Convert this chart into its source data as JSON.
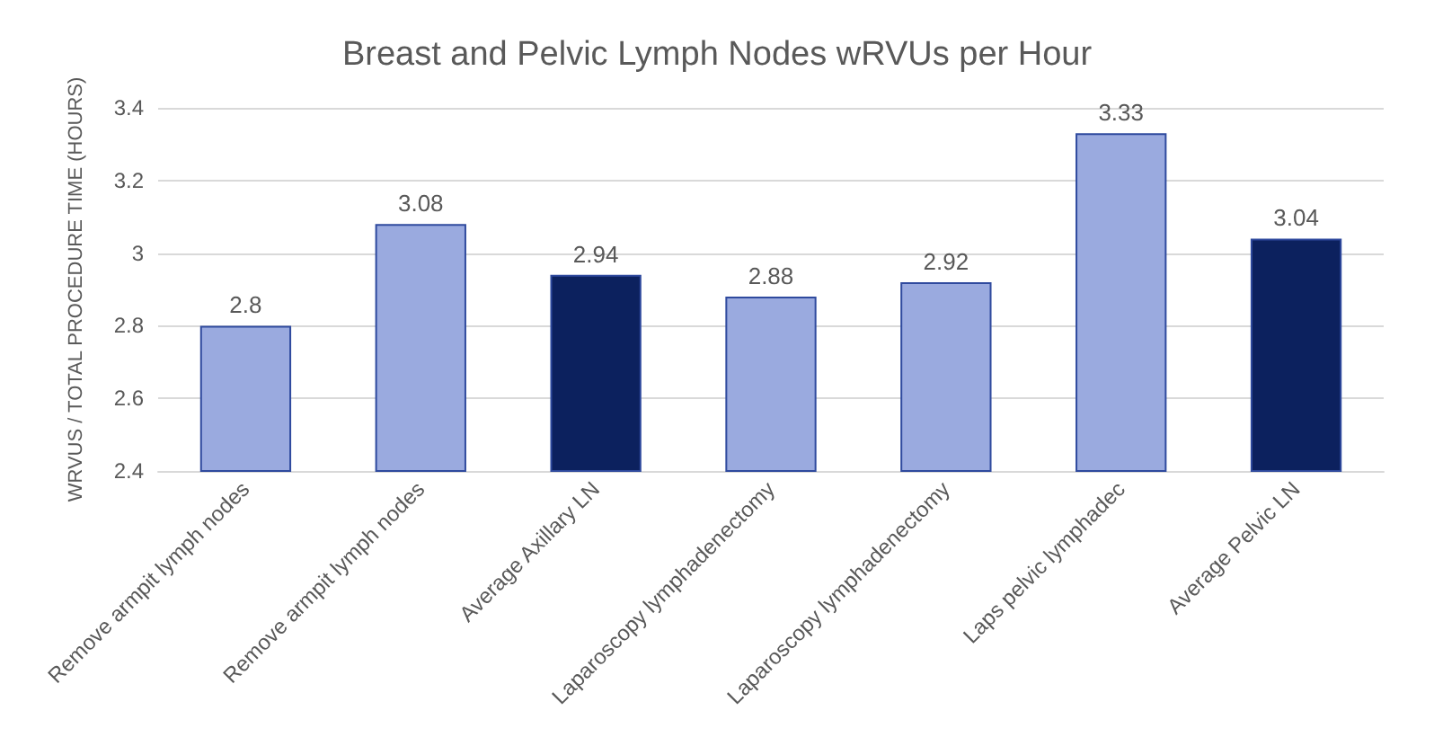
{
  "chart_data": {
    "type": "bar",
    "title": "Breast and Pelvic Lymph Nodes wRVUs per Hour",
    "ylabel": "WRVUS / TOTAL PROCEDURE TIME (HOURS)",
    "categories": [
      "Remove armpit lymph nodes",
      "Remove armpit lymph nodes",
      "Average Axillary LN",
      "Laparoscopy lymphadenectomy",
      "Laparoscopy lymphadenectomy",
      "Laps pelvic lymphadec",
      "Average Pelvic LN"
    ],
    "values": [
      2.8,
      3.08,
      2.94,
      2.88,
      2.92,
      3.33,
      3.04
    ],
    "colors": [
      "#9aaadf",
      "#9aaadf",
      "#0c215e",
      "#9aaadf",
      "#9aaadf",
      "#9aaadf",
      "#0c215e"
    ],
    "ylim": [
      2.4,
      3.4
    ],
    "yticks": [
      2.4,
      2.6,
      2.8,
      3,
      3.2,
      3.4
    ],
    "grid": "y",
    "data_labels": true
  }
}
